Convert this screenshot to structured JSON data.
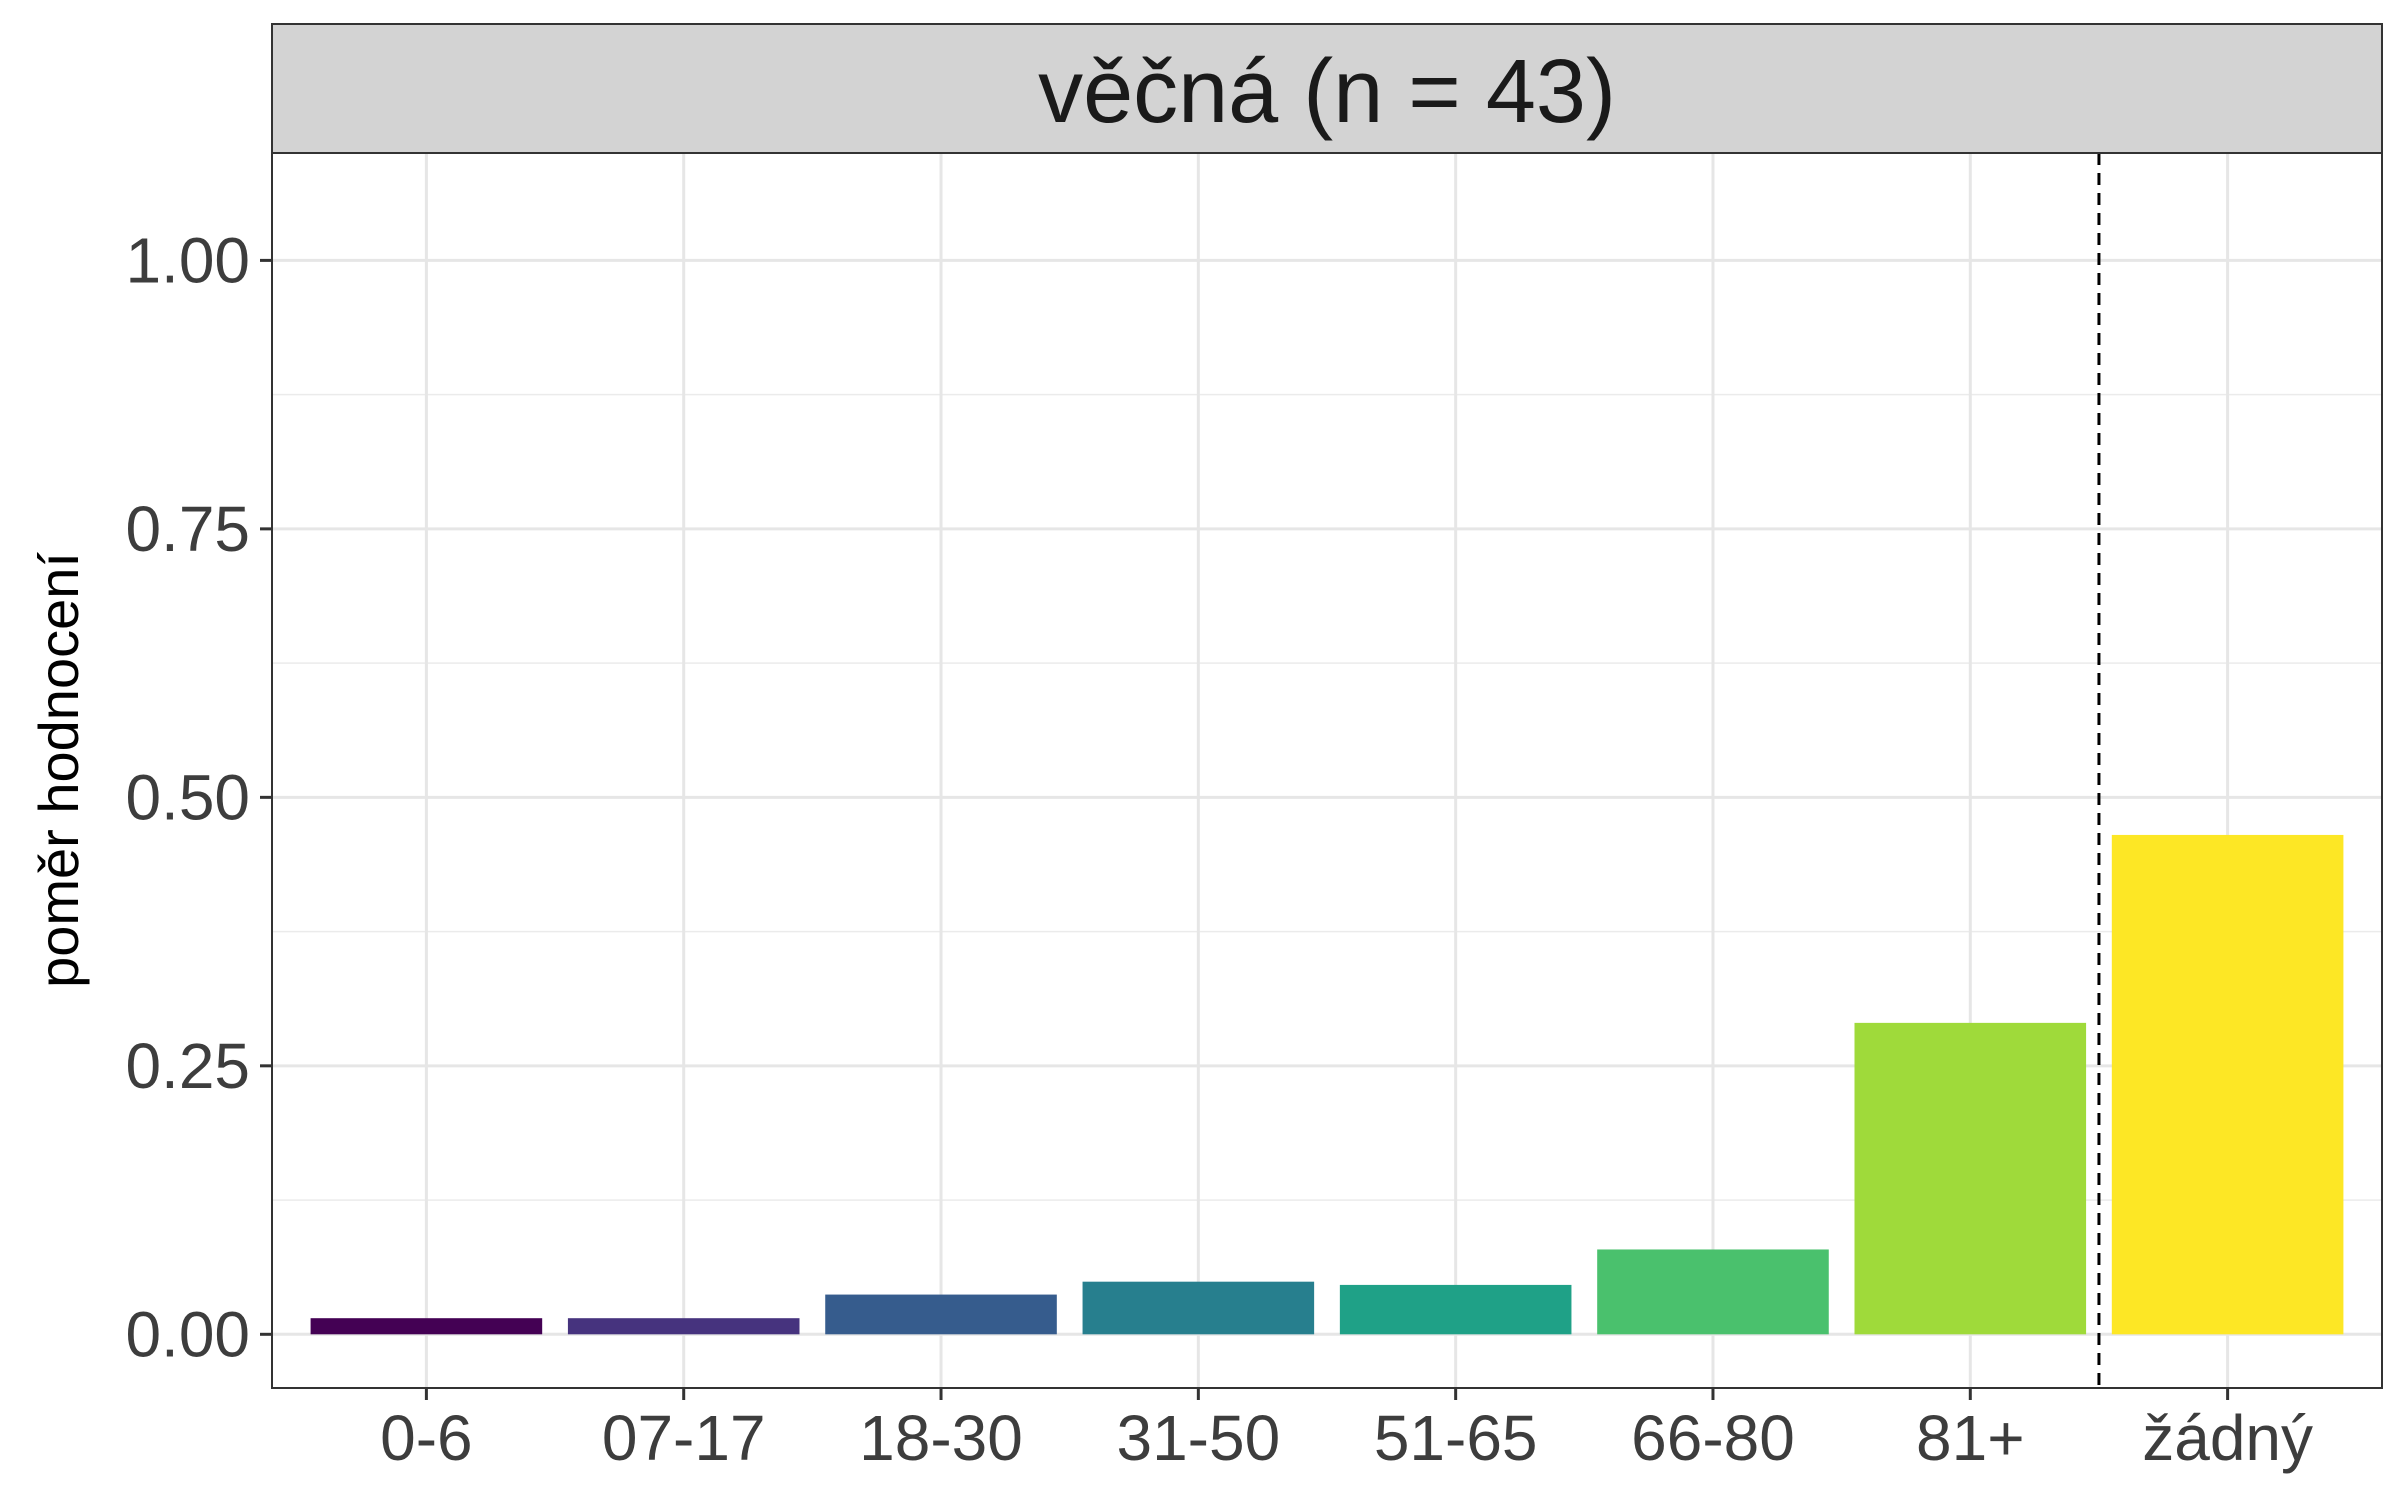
{
  "chart_data": {
    "type": "bar",
    "facet_title": "věčná (n = 43)",
    "ylabel": "poměr hodnocení",
    "xlabel": "",
    "categories": [
      "0-6",
      "07-17",
      "18-30",
      "31-50",
      "51-65",
      "66-80",
      "81+",
      "žádný"
    ],
    "values": [
      0.015,
      0.015,
      0.037,
      0.049,
      0.046,
      0.079,
      0.29,
      0.465
    ],
    "colors": [
      "#440154",
      "#46337E",
      "#365C8D",
      "#277F8E",
      "#1FA187",
      "#4AC16D",
      "#9FDA3A",
      "#FDE725"
    ],
    "ylim": [
      -0.05,
      1.1
    ],
    "yticks": [
      0.0,
      0.25,
      0.5,
      0.75,
      1.0
    ],
    "ytick_labels": [
      "0.00",
      "0.25",
      "0.50",
      "0.75",
      "1.00"
    ],
    "separator_after_index": 6,
    "grid": true,
    "legend": "none"
  }
}
